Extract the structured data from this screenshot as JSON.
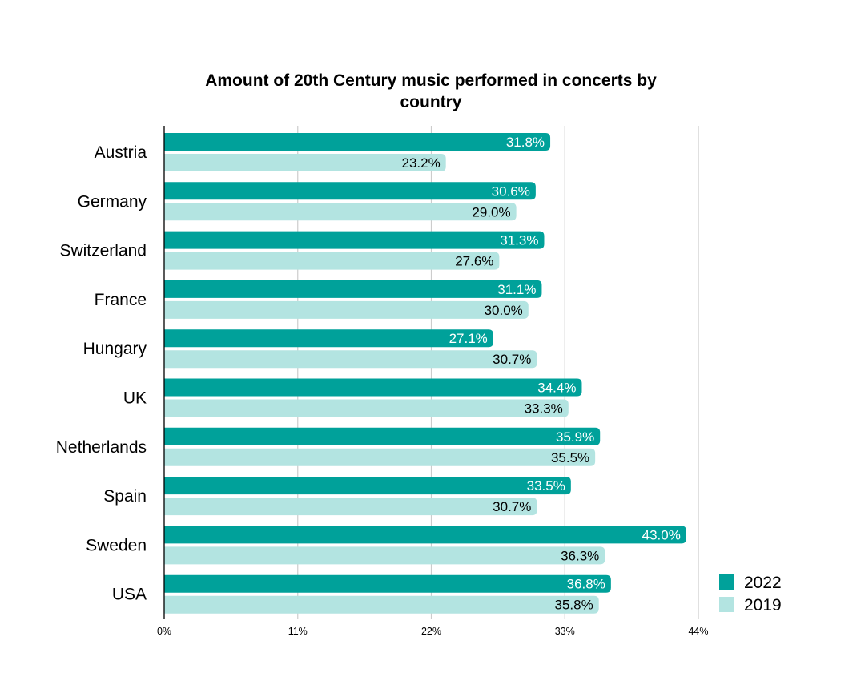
{
  "chart_data": {
    "type": "bar",
    "orientation": "horizontal",
    "title": "Amount of 20th Century music performed in concerts by country",
    "title_lines": [
      "Amount of 20th Century music performed in concerts by",
      "country"
    ],
    "categories": [
      "Austria",
      "Germany",
      "Switzerland",
      "France",
      "Hungary",
      "UK",
      "Netherlands",
      "Spain",
      "Sweden",
      "USA"
    ],
    "series": [
      {
        "name": "2022",
        "color": "#00a19a",
        "label_color": "#ffffff",
        "values": [
          31.8,
          30.6,
          31.3,
          31.1,
          27.1,
          34.4,
          35.9,
          33.5,
          43.0,
          36.8
        ],
        "labels": [
          "31.8%",
          "30.6%",
          "31.3%",
          "31.1%",
          "27.1%",
          "34.4%",
          "35.9%",
          "33.5%",
          "43.0%",
          "36.8%"
        ]
      },
      {
        "name": "2019",
        "color": "#b3e4e1",
        "label_color": "#000000",
        "values": [
          23.2,
          29.0,
          27.6,
          30.0,
          30.7,
          33.3,
          35.5,
          30.7,
          36.3,
          35.8
        ],
        "labels": [
          "23.2%",
          "29.0%",
          "27.6%",
          "30.0%",
          "30.7%",
          "33.3%",
          "35.5%",
          "30.7%",
          "36.3%",
          "35.8%"
        ]
      }
    ],
    "xlim": [
      0,
      44
    ],
    "xticks": [
      0,
      11,
      22,
      33,
      44
    ],
    "xtick_labels": [
      "0%",
      "11%",
      "22%",
      "33%",
      "44%"
    ],
    "xlabel": "",
    "ylabel": "",
    "grid": true,
    "legend_position": "bottom-right",
    "gridline_color": "#cccccc",
    "axis_color": "#000000"
  }
}
